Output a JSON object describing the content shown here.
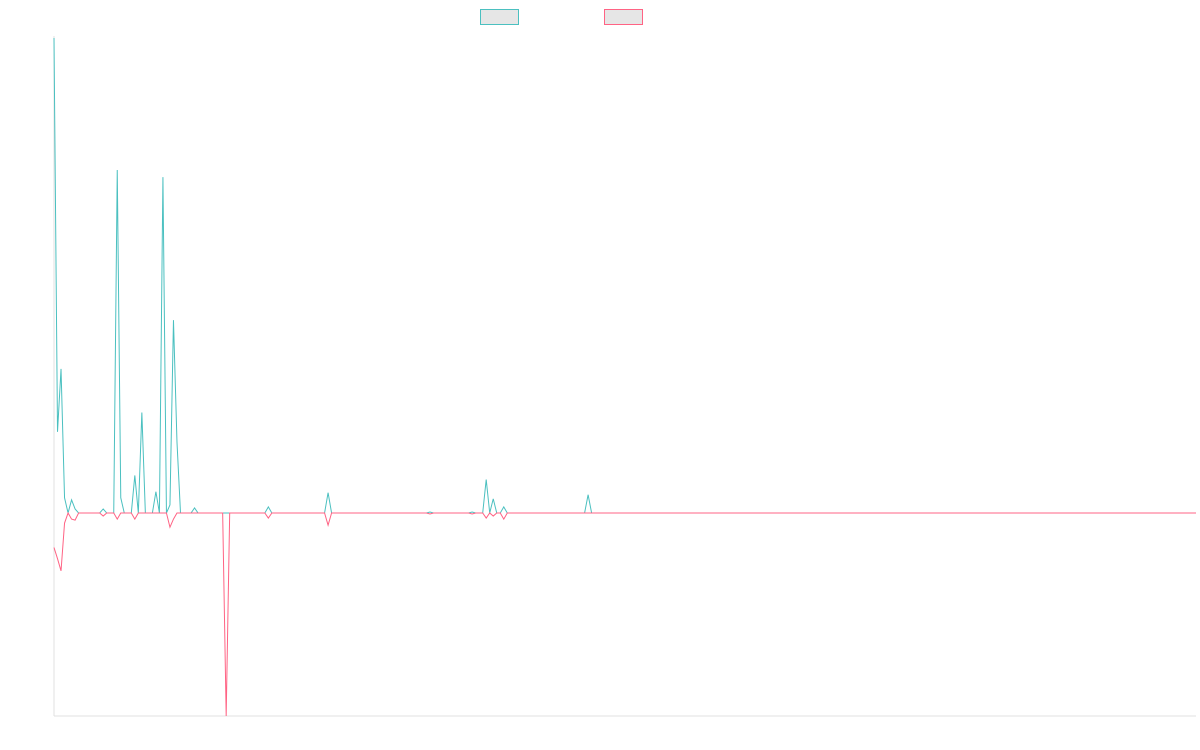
{
  "chart_data": {
    "type": "line",
    "title": "",
    "xlabel": "",
    "ylabel": "",
    "grid": false,
    "legend_position": "top-center",
    "x_count": 326,
    "ylim": [
      -200,
      470
    ],
    "series": [
      {
        "name": "",
        "color": "#4bc0c0",
        "sparse": [
          [
            0,
            468
          ],
          [
            1,
            80
          ],
          [
            2,
            142
          ],
          [
            3,
            15
          ],
          [
            5,
            13
          ],
          [
            6,
            4
          ],
          [
            14,
            4
          ],
          [
            18,
            338
          ],
          [
            19,
            15
          ],
          [
            23,
            37
          ],
          [
            25,
            99
          ],
          [
            29,
            21
          ],
          [
            31,
            331
          ],
          [
            33,
            8
          ],
          [
            34,
            190
          ],
          [
            35,
            70
          ],
          [
            40,
            5
          ],
          [
            61,
            6
          ],
          [
            78,
            20
          ],
          [
            107,
            1
          ],
          [
            119,
            1
          ],
          [
            123,
            33
          ],
          [
            125,
            14
          ],
          [
            128,
            6
          ],
          [
            152,
            18
          ]
        ]
      },
      {
        "name": "",
        "color": "#ff6384",
        "sparse": [
          [
            0,
            -34
          ],
          [
            1,
            -45
          ],
          [
            2,
            -57
          ],
          [
            3,
            -10
          ],
          [
            5,
            -6
          ],
          [
            6,
            -7
          ],
          [
            14,
            -3
          ],
          [
            18,
            -6
          ],
          [
            23,
            -6
          ],
          [
            33,
            -14
          ],
          [
            34,
            -6
          ],
          [
            49,
            -200
          ],
          [
            61,
            -5
          ],
          [
            78,
            -12
          ],
          [
            107,
            -1
          ],
          [
            119,
            -1
          ],
          [
            123,
            -5
          ],
          [
            125,
            -3
          ],
          [
            128,
            -6
          ]
        ]
      }
    ]
  }
}
